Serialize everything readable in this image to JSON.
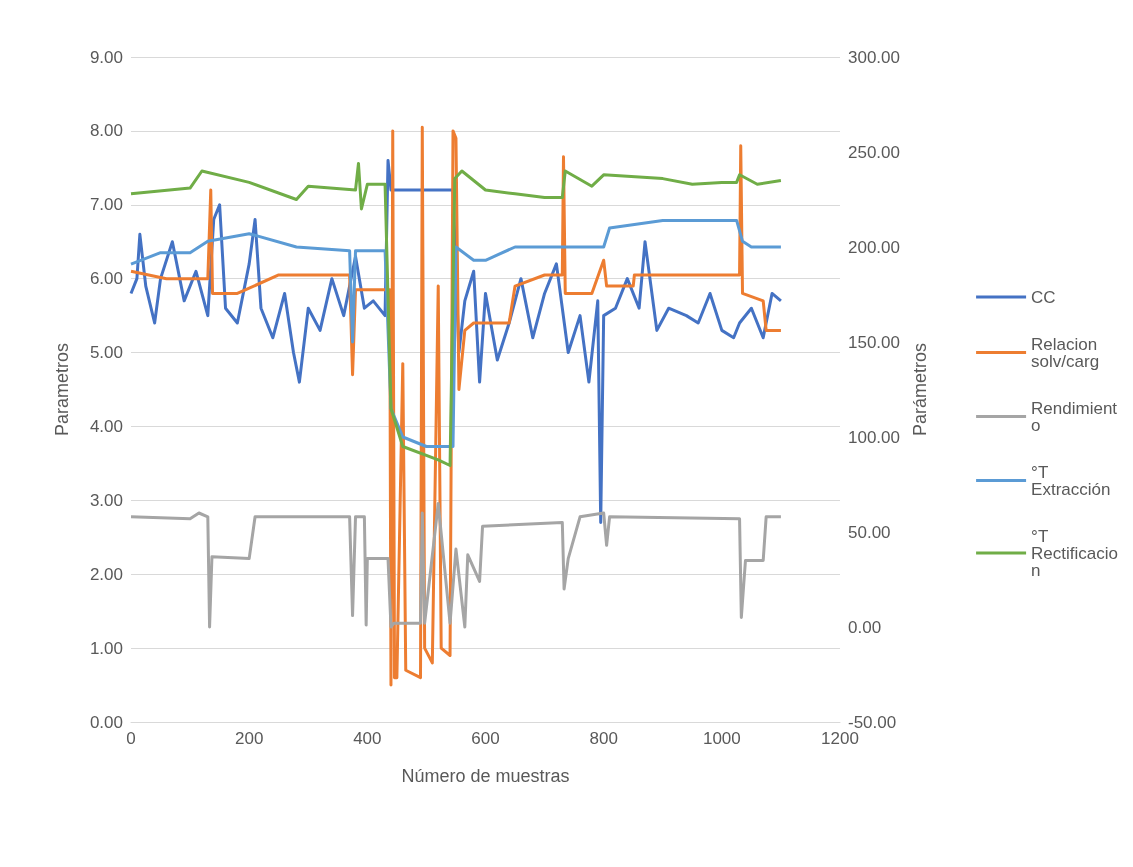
{
  "chart_data": {
    "type": "line",
    "xlabel": "Número de muestras",
    "ylabel": "Parametros",
    "y2label": "Parámetros",
    "xlim": [
      0,
      1200
    ],
    "xticks": [
      0,
      200,
      400,
      600,
      800,
      1000,
      1200
    ],
    "ylim": [
      0,
      9
    ],
    "yticks": [
      {
        "value": 0,
        "label": "0.00"
      },
      {
        "value": 1,
        "label": "1.00"
      },
      {
        "value": 2,
        "label": "2.00"
      },
      {
        "value": 3,
        "label": "3.00"
      },
      {
        "value": 4,
        "label": "4.00"
      },
      {
        "value": 5,
        "label": "5.00"
      },
      {
        "value": 6,
        "label": "6.00"
      },
      {
        "value": 7,
        "label": "7.00"
      },
      {
        "value": 8,
        "label": "8.00"
      },
      {
        "value": 9,
        "label": "9.00"
      }
    ],
    "y2lim": [
      -50,
      300
    ],
    "y2ticks": [
      {
        "value": -50,
        "label": "-50.00"
      },
      {
        "value": 0,
        "label": "0.00"
      },
      {
        "value": 50,
        "label": "50.00"
      },
      {
        "value": 100,
        "label": "100.00"
      },
      {
        "value": 150,
        "label": "150.00"
      },
      {
        "value": 200,
        "label": "200.00"
      },
      {
        "value": 250,
        "label": "250.00"
      },
      {
        "value": 300,
        "label": "300.00"
      }
    ],
    "grid": "y",
    "legend": "right",
    "marker": "none",
    "line_style": "solid",
    "series": [
      {
        "name": "CC",
        "color": "#4472c4",
        "x": [
          0,
          10,
          15,
          25,
          40,
          50,
          70,
          90,
          110,
          130,
          140,
          150,
          160,
          180,
          200,
          210,
          220,
          240,
          260,
          275,
          285,
          300,
          320,
          340,
          360,
          380,
          395,
          410,
          430,
          435,
          440,
          545,
          555,
          565,
          580,
          590,
          600,
          620,
          640,
          660,
          680,
          700,
          720,
          740,
          760,
          775,
          790,
          795,
          800,
          820,
          840,
          860,
          870,
          890,
          910,
          940,
          960,
          980,
          1000,
          1020,
          1030,
          1050,
          1070,
          1085,
          1100
        ],
        "values": [
          5.8,
          6.0,
          6.6,
          5.9,
          5.4,
          6.0,
          6.5,
          5.7,
          6.1,
          5.5,
          6.8,
          7.0,
          5.6,
          5.4,
          6.2,
          6.8,
          5.6,
          5.2,
          5.8,
          5.0,
          4.6,
          5.6,
          5.3,
          6.0,
          5.5,
          6.3,
          5.6,
          5.7,
          5.5,
          7.6,
          7.2,
          7.2,
          5.0,
          5.7,
          6.1,
          4.6,
          5.8,
          4.9,
          5.4,
          6.0,
          5.2,
          5.8,
          6.2,
          5.0,
          5.5,
          4.6,
          5.7,
          2.7,
          5.5,
          5.6,
          6.0,
          5.6,
          6.5,
          5.3,
          5.6,
          5.5,
          5.4,
          5.8,
          5.3,
          5.2,
          5.4,
          5.6,
          5.2,
          5.8,
          5.7
        ]
      },
      {
        "name": "Relacion solv/carg",
        "color": "#ed7d31",
        "x": [
          0,
          60,
          130,
          135,
          138,
          180,
          250,
          370,
          375,
          380,
          438,
          440,
          443,
          446,
          450,
          460,
          465,
          490,
          493,
          497,
          510,
          520,
          525,
          540,
          545,
          550,
          555,
          565,
          580,
          640,
          650,
          700,
          730,
          732,
          735,
          780,
          800,
          805,
          850,
          852,
          1030,
          1032,
          1035,
          1070,
          1075,
          1100
        ],
        "values": [
          6.1,
          6.0,
          6.0,
          7.2,
          5.8,
          5.8,
          6.05,
          6.05,
          4.7,
          5.85,
          5.85,
          0.5,
          8.0,
          0.6,
          0.6,
          4.85,
          0.7,
          0.6,
          8.05,
          1.0,
          0.8,
          5.9,
          1.0,
          0.9,
          8.0,
          7.9,
          4.5,
          5.3,
          5.4,
          5.4,
          5.9,
          6.05,
          6.05,
          7.65,
          5.8,
          5.8,
          6.25,
          5.9,
          5.9,
          6.05,
          6.05,
          7.8,
          5.8,
          5.7,
          5.3,
          5.3
        ]
      },
      {
        "name": "Rendimiento",
        "color": "#a5a5a5",
        "axis": "y2",
        "x": [
          0,
          100,
          115,
          130,
          133,
          137,
          200,
          210,
          370,
          375,
          380,
          395,
          398,
          400,
          435,
          440,
          445,
          490,
          493,
          497,
          520,
          540,
          550,
          565,
          570,
          590,
          595,
          730,
          733,
          740,
          760,
          800,
          805,
          810,
          1030,
          1033,
          1040,
          1070,
          1075,
          1100
        ],
        "values": [
          58,
          57,
          60,
          58,
          0,
          37,
          36,
          58,
          58,
          6,
          58,
          58,
          1,
          36,
          36,
          0,
          2,
          2,
          60,
          2,
          65,
          2,
          41,
          0,
          38,
          24,
          53,
          55,
          20,
          36,
          58,
          60,
          43,
          58,
          57,
          5,
          35,
          35,
          58,
          58
        ]
      },
      {
        "name": "°T Extracción",
        "color": "#5b9bd5",
        "axis": "y2",
        "x": [
          0,
          50,
          100,
          130,
          200,
          280,
          370,
          375,
          380,
          430,
          440,
          460,
          500,
          545,
          550,
          580,
          600,
          650,
          800,
          810,
          900,
          1025,
          1035,
          1050,
          1100
        ],
        "values": [
          191,
          197,
          197,
          203,
          207,
          200,
          198,
          150,
          198,
          198,
          115,
          100,
          95,
          95,
          200,
          193,
          193,
          200,
          200,
          210,
          214,
          214,
          203,
          200,
          200
        ]
      },
      {
        "name": "°T Rectificacion",
        "color": "#70ad47",
        "axis": "y2",
        "x": [
          0,
          100,
          120,
          200,
          280,
          300,
          380,
          385,
          390,
          400,
          430,
          440,
          460,
          520,
          540,
          548,
          560,
          600,
          650,
          700,
          730,
          735,
          780,
          800,
          900,
          950,
          1000,
          1025,
          1030,
          1060,
          1100
        ],
        "values": [
          228,
          231,
          240,
          234,
          225,
          232,
          230,
          244,
          220,
          233,
          233,
          115,
          95,
          88,
          85,
          236,
          240,
          230,
          228,
          226,
          226,
          240,
          232,
          238,
          236,
          233,
          234,
          234,
          238,
          233,
          235
        ]
      }
    ]
  }
}
